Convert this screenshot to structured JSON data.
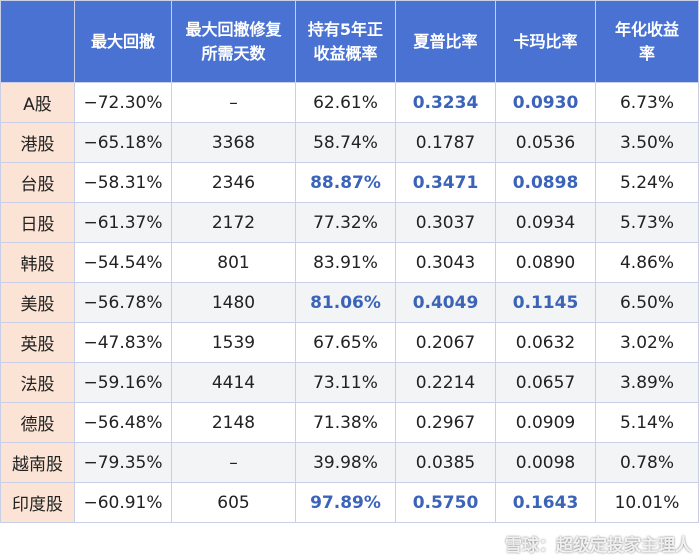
{
  "table": {
    "headers": [
      "",
      "最大回撤",
      "最大回撤修复\n所需天数",
      "持有5年正\n收益概率",
      "夏普比率",
      "卡玛比率",
      "年化收益\n率"
    ],
    "rows": [
      {
        "market": "A股",
        "drawdown": "−72.30%",
        "days": "–",
        "prob": "62.61%",
        "sharpe": "0.3234",
        "calmar": "0.0930",
        "annual": "6.73%",
        "hl": [
          4,
          5
        ]
      },
      {
        "market": "港股",
        "drawdown": "−65.18%",
        "days": "3368",
        "prob": "58.74%",
        "sharpe": "0.1787",
        "calmar": "0.0536",
        "annual": "3.50%",
        "hl": []
      },
      {
        "market": "台股",
        "drawdown": "−58.31%",
        "days": "2346",
        "prob": "88.87%",
        "sharpe": "0.3471",
        "calmar": "0.0898",
        "annual": "5.24%",
        "hl": [
          3,
          4,
          5
        ]
      },
      {
        "market": "日股",
        "drawdown": "−61.37%",
        "days": "2172",
        "prob": "77.32%",
        "sharpe": "0.3037",
        "calmar": "0.0934",
        "annual": "5.73%",
        "hl": []
      },
      {
        "market": "韩股",
        "drawdown": "−54.54%",
        "days": "801",
        "prob": "83.91%",
        "sharpe": "0.3043",
        "calmar": "0.0890",
        "annual": "4.86%",
        "hl": []
      },
      {
        "market": "美股",
        "drawdown": "−56.78%",
        "days": "1480",
        "prob": "81.06%",
        "sharpe": "0.4049",
        "calmar": "0.1145",
        "annual": "6.50%",
        "hl": [
          3,
          4,
          5
        ]
      },
      {
        "market": "英股",
        "drawdown": "−47.83%",
        "days": "1539",
        "prob": "67.65%",
        "sharpe": "0.2067",
        "calmar": "0.0632",
        "annual": "3.02%",
        "hl": []
      },
      {
        "market": "法股",
        "drawdown": "−59.16%",
        "days": "4414",
        "prob": "73.11%",
        "sharpe": "0.2214",
        "calmar": "0.0657",
        "annual": "3.89%",
        "hl": []
      },
      {
        "market": "德股",
        "drawdown": "−56.48%",
        "days": "2148",
        "prob": "71.38%",
        "sharpe": "0.2967",
        "calmar": "0.0909",
        "annual": "5.14%",
        "hl": []
      },
      {
        "market": "越南股",
        "drawdown": "−79.35%",
        "days": "–",
        "prob": "39.98%",
        "sharpe": "0.0385",
        "calmar": "0.0098",
        "annual": "0.78%",
        "hl": []
      },
      {
        "market": "印度股",
        "drawdown": "−60.91%",
        "days": "605",
        "prob": "97.89%",
        "sharpe": "0.5750",
        "calmar": "0.1643",
        "annual": "10.01%",
        "hl": [
          3,
          4,
          5
        ]
      }
    ]
  },
  "watermark": {
    "text": "雪球：超级定投家主理人",
    "icon": "snowball-logo-icon"
  },
  "colors": {
    "header_bg": "#4a72d3",
    "row_head_bg": "#fbe4d6",
    "highlight_text": "#3b63b8",
    "stripe": "#f3f4f6"
  }
}
